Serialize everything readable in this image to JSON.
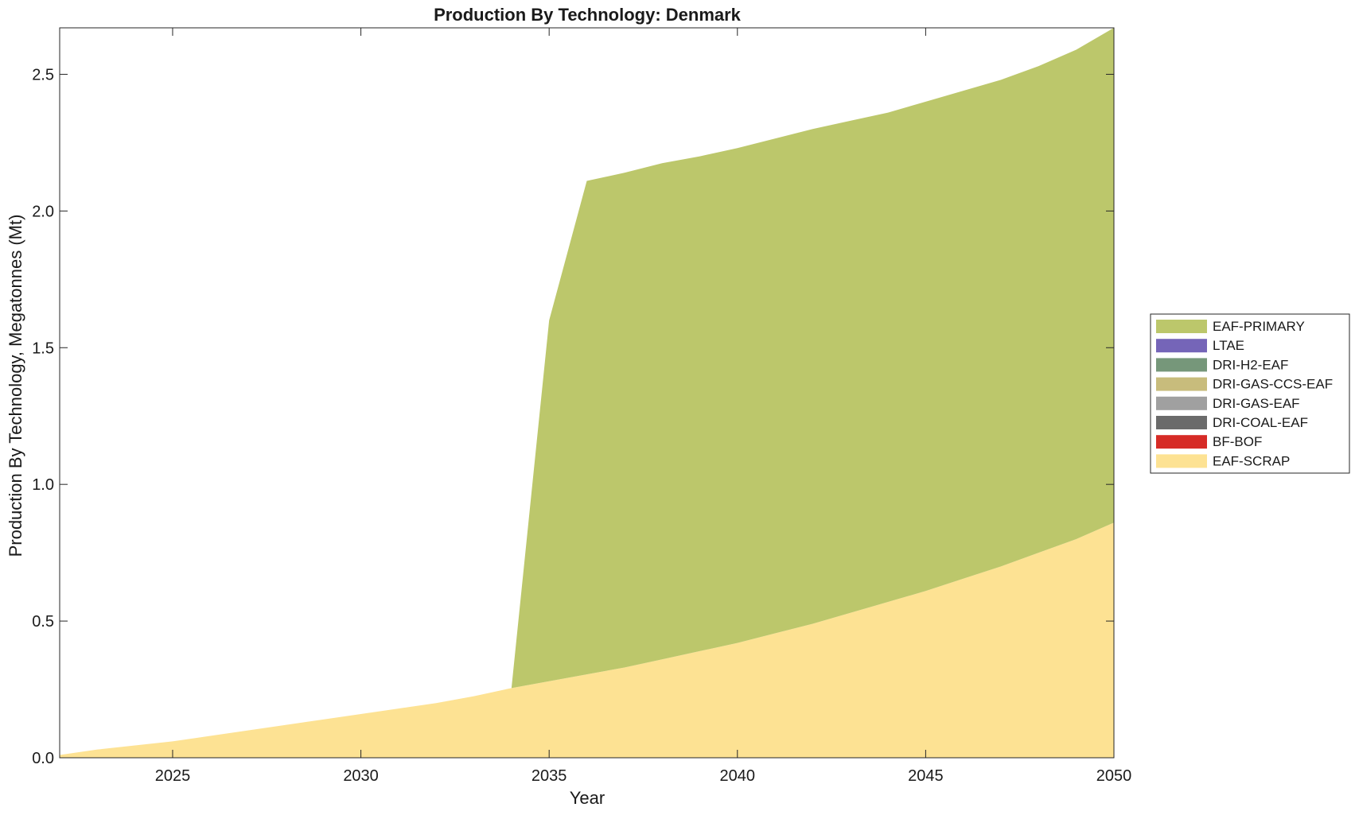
{
  "chart_data": {
    "type": "area",
    "title": "Production By Technology: Denmark",
    "xlabel": "Year",
    "ylabel": "Production By Technology, Megatonnes (Mt)",
    "xlim": [
      2022,
      2050
    ],
    "ylim": [
      0,
      2.67
    ],
    "xticks": [
      2025,
      2030,
      2035,
      2040,
      2045,
      2050
    ],
    "xtick_labels": [
      "2025",
      "2030",
      "2035",
      "2040",
      "2045",
      "2050"
    ],
    "yticks": [
      0,
      0.5,
      1.0,
      1.5,
      2.0,
      2.5
    ],
    "ytick_labels": [
      "0.0",
      "0.5",
      "1.0",
      "1.5",
      "2.0",
      "2.5"
    ],
    "grid": false,
    "legend_position": "right",
    "stacked": true,
    "x": [
      2022,
      2023,
      2024,
      2025,
      2026,
      2027,
      2028,
      2029,
      2030,
      2031,
      2032,
      2033,
      2034,
      2035,
      2036,
      2037,
      2038,
      2039,
      2040,
      2041,
      2042,
      2043,
      2044,
      2045,
      2046,
      2047,
      2048,
      2049,
      2050
    ],
    "series": [
      {
        "name": "EAF-SCRAP",
        "color": "#fde293",
        "values": [
          0.01,
          0.03,
          0.045,
          0.06,
          0.08,
          0.1,
          0.12,
          0.14,
          0.16,
          0.18,
          0.2,
          0.225,
          0.255,
          0.28,
          0.305,
          0.33,
          0.36,
          0.39,
          0.42,
          0.455,
          0.49,
          0.53,
          0.57,
          0.61,
          0.655,
          0.7,
          0.75,
          0.8,
          0.86
        ]
      },
      {
        "name": "BF-BOF",
        "color": "#d62b26",
        "values": [
          0,
          0,
          0,
          0,
          0,
          0,
          0,
          0,
          0,
          0,
          0,
          0,
          0,
          0,
          0,
          0,
          0,
          0,
          0,
          0,
          0,
          0,
          0,
          0,
          0,
          0,
          0,
          0,
          0
        ]
      },
      {
        "name": "DRI-COAL-EAF",
        "color": "#6b6b6b",
        "values": [
          0,
          0,
          0,
          0,
          0,
          0,
          0,
          0,
          0,
          0,
          0,
          0,
          0,
          0,
          0,
          0,
          0,
          0,
          0,
          0,
          0,
          0,
          0,
          0,
          0,
          0,
          0,
          0,
          0
        ]
      },
      {
        "name": "DRI-GAS-EAF",
        "color": "#a0a0a0",
        "values": [
          0,
          0,
          0,
          0,
          0,
          0,
          0,
          0,
          0,
          0,
          0,
          0,
          0,
          0,
          0,
          0,
          0,
          0,
          0,
          0,
          0,
          0,
          0,
          0,
          0,
          0,
          0,
          0,
          0
        ]
      },
      {
        "name": "DRI-GAS-CCS-EAF",
        "color": "#c8bc7c",
        "values": [
          0,
          0,
          0,
          0,
          0,
          0,
          0,
          0,
          0,
          0,
          0,
          0,
          0,
          0,
          0,
          0,
          0,
          0,
          0,
          0,
          0,
          0,
          0,
          0,
          0,
          0,
          0,
          0,
          0
        ]
      },
      {
        "name": "DRI-H2-EAF",
        "color": "#76977a",
        "values": [
          0,
          0,
          0,
          0,
          0,
          0,
          0,
          0,
          0,
          0,
          0,
          0,
          0,
          0,
          0,
          0,
          0,
          0,
          0,
          0,
          0,
          0,
          0,
          0,
          0,
          0,
          0,
          0,
          0
        ]
      },
      {
        "name": "LTAE",
        "color": "#7565b8",
        "values": [
          0,
          0,
          0,
          0,
          0,
          0,
          0,
          0,
          0,
          0,
          0,
          0,
          0,
          0,
          0,
          0,
          0,
          0,
          0,
          0,
          0,
          0,
          0,
          0,
          0,
          0,
          0,
          0,
          0
        ]
      },
      {
        "name": "EAF-PRIMARY",
        "color": "#bcc76b",
        "values": [
          0,
          0,
          0,
          0,
          0,
          0,
          0,
          0,
          0,
          0,
          0,
          0,
          0,
          1.32,
          1.805,
          1.81,
          1.815,
          1.81,
          1.81,
          1.81,
          1.81,
          1.8,
          1.79,
          1.79,
          1.785,
          1.78,
          1.78,
          1.79,
          1.81
        ]
      }
    ],
    "legend_order": [
      "EAF-PRIMARY",
      "LTAE",
      "DRI-H2-EAF",
      "DRI-GAS-CCS-EAF",
      "DRI-GAS-EAF",
      "DRI-COAL-EAF",
      "BF-BOF",
      "EAF-SCRAP"
    ]
  }
}
